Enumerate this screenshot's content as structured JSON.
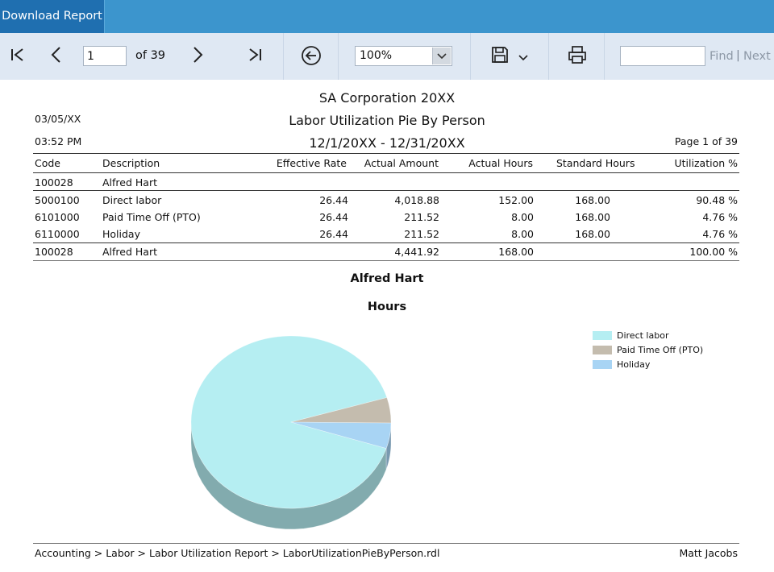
{
  "tab": {
    "label": "Download Report"
  },
  "toolbar": {
    "page_value": "1",
    "page_of": "of 39",
    "zoom_value": "100%",
    "find_label": "Find",
    "find_separator": "|",
    "next_label": "Next"
  },
  "report": {
    "company": "SA Corporation 20XX",
    "report_title": "Labor Utilization Pie By Person",
    "date_range": "12/1/20XX - 12/31/20XX",
    "run_date": "03/05/XX",
    "run_time": "03:52 PM",
    "page_label": "Page 1 of 39",
    "columns": [
      "Code",
      "Description",
      "Effective Rate",
      "Actual Amount",
      "Actual Hours",
      "Standard Hours",
      "Utilization %"
    ],
    "group": {
      "code": "100028",
      "name": "Alfred Hart"
    },
    "rows": [
      {
        "code": "5000100",
        "description": "Direct labor",
        "rate": "26.44",
        "amount": "4,018.88",
        "hours": "152.00",
        "standard": "168.00",
        "util": "90.48 %"
      },
      {
        "code": "6101000",
        "description": "Paid Time Off (PTO)",
        "rate": "26.44",
        "amount": "211.52",
        "hours": "8.00",
        "standard": "168.00",
        "util": "4.76 %"
      },
      {
        "code": "6110000",
        "description": "Holiday",
        "rate": "26.44",
        "amount": "211.52",
        "hours": "8.00",
        "standard": "168.00",
        "util": "4.76 %"
      }
    ],
    "total": {
      "code": "100028",
      "description": "Alfred Hart",
      "amount": "4,441.92",
      "hours": "168.00",
      "util": "100.00 %"
    },
    "footer_path": "Accounting > Labor > Labor Utilization Report > LaborUtilizationPieByPerson.rdl",
    "footer_user": "Matt Jacobs"
  },
  "chart_data": {
    "type": "pie",
    "title": "Alfred Hart",
    "subtitle": "Hours",
    "labels": [
      "Direct labor",
      "Paid Time Off (PTO)",
      "Holiday"
    ],
    "values": [
      152,
      8,
      8
    ],
    "colors": [
      "#b5eef2",
      "#c4bcae",
      "#a8d4f4"
    ],
    "legend_position": "top-right",
    "style": "3d"
  }
}
